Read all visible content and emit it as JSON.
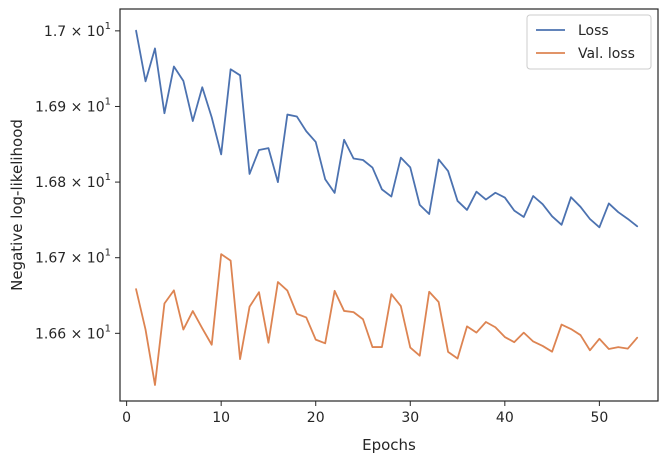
{
  "chart_data": {
    "type": "line",
    "xlabel": "Epochs",
    "ylabel": "Negative log-likelihood",
    "xlim": [
      -0.7,
      56.2
    ],
    "ylim": [
      16.5105,
      17.0289
    ],
    "x_ticks": [
      0,
      10,
      20,
      30,
      40,
      50
    ],
    "x_tick_labels": [
      "0",
      "10",
      "20",
      "30",
      "40",
      "50"
    ],
    "y_ticks": [
      16.6,
      16.7,
      16.8,
      16.9,
      17.0
    ],
    "y_tick_labels": [
      {
        "mantissa": "1.66",
        "exponent": "1"
      },
      {
        "mantissa": "1.67",
        "exponent": "1"
      },
      {
        "mantissa": "1.68",
        "exponent": "1"
      },
      {
        "mantissa": "1.69",
        "exponent": "1"
      },
      {
        "mantissa": "1.7",
        "exponent": "1"
      }
    ],
    "y_tick_times": "×",
    "y_tick_base": "10",
    "grid": false,
    "legend_position": "top-right",
    "x": [
      1,
      2,
      3,
      4,
      5,
      6,
      7,
      8,
      9,
      10,
      11,
      12,
      13,
      14,
      15,
      16,
      17,
      18,
      19,
      20,
      21,
      22,
      23,
      24,
      25,
      26,
      27,
      28,
      29,
      30,
      31,
      32,
      33,
      34,
      35,
      36,
      37,
      38,
      39,
      40,
      41,
      42,
      43,
      44,
      45,
      46,
      47,
      48,
      49,
      50,
      51,
      52,
      53,
      54
    ],
    "series": [
      {
        "name": "Loss",
        "color": "#4c72b0",
        "values": [
          17.0002,
          16.9332,
          16.9767,
          16.8911,
          16.9528,
          16.9339,
          16.8807,
          16.9254,
          16.8856,
          16.8367,
          16.9492,
          16.9412,
          16.8108,
          16.8425,
          16.8449,
          16.8,
          16.8893,
          16.8868,
          16.8672,
          16.8531,
          16.8038,
          16.7857,
          16.856,
          16.8312,
          16.8292,
          16.8192,
          16.7904,
          16.7809,
          16.8323,
          16.8194,
          16.7699,
          16.7578,
          16.8299,
          16.8146,
          16.7751,
          16.7632,
          16.7873,
          16.7769,
          16.7859,
          16.7795,
          16.7623,
          16.7539,
          16.7816,
          16.7708,
          16.7547,
          16.7435,
          16.78,
          16.7673,
          16.7512,
          16.7402,
          16.7718,
          16.7602,
          16.7514,
          16.7415
        ]
      },
      {
        "name": "Val. loss",
        "color": "#dd8452",
        "values": [
          16.6584,
          16.605,
          16.5317,
          16.6394,
          16.6568,
          16.605,
          16.6294,
          16.6067,
          16.5849,
          16.7047,
          16.6962,
          16.5659,
          16.6351,
          16.6544,
          16.5876,
          16.6679,
          16.6565,
          16.6257,
          16.621,
          16.5917,
          16.5868,
          16.6562,
          16.6296,
          16.628,
          16.6186,
          16.5818,
          16.5818,
          16.6518,
          16.636,
          16.5811,
          16.5705,
          16.655,
          16.6414,
          16.5755,
          16.5667,
          16.6092,
          16.601,
          16.615,
          16.608,
          16.5951,
          16.5883,
          16.6009,
          16.5892,
          16.5833,
          16.5757,
          16.6116,
          16.6057,
          16.5977,
          16.5776,
          16.5928,
          16.5793,
          16.5818,
          16.5797,
          16.5942
        ]
      }
    ]
  }
}
